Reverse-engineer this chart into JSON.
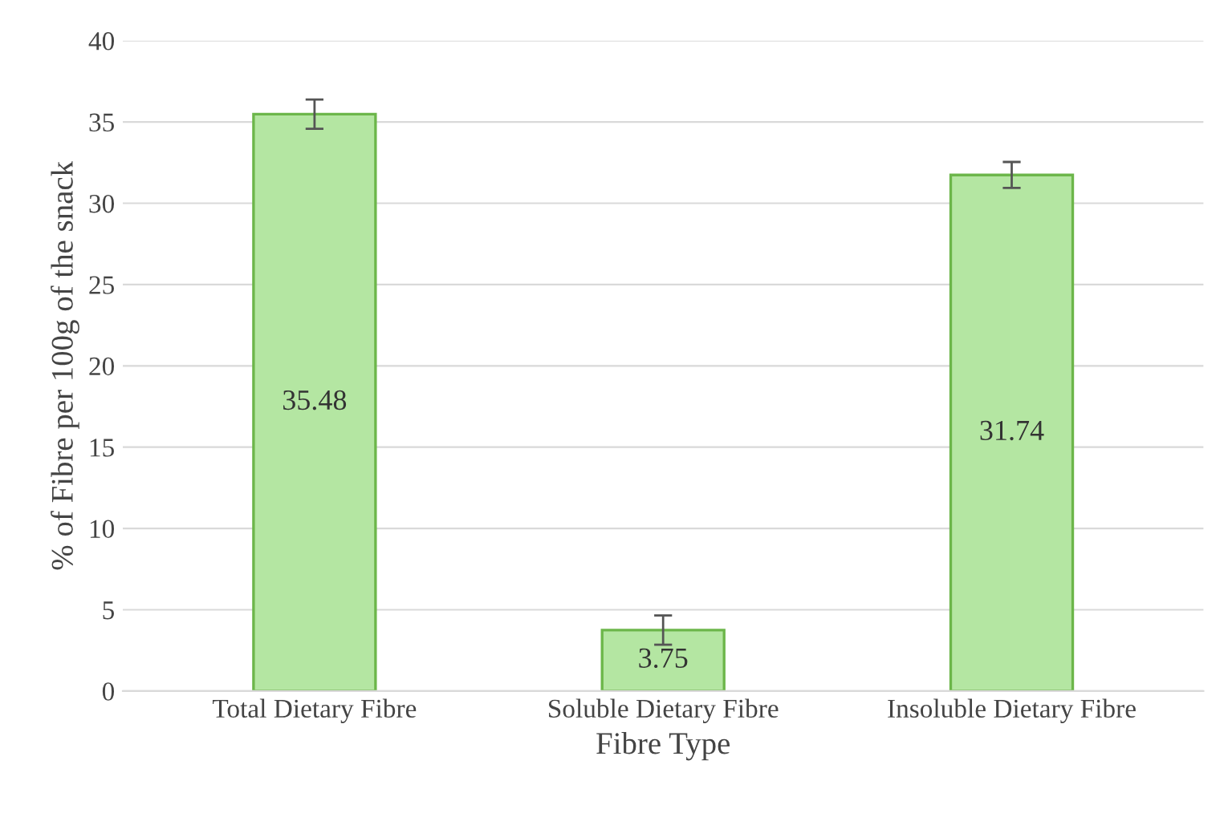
{
  "chart_data": {
    "type": "bar",
    "xlabel": "Fibre Type",
    "ylabel": "% of Fibre per 100g of the snack",
    "categories": [
      "Total Dietary Fibre",
      "Soluble Dietary Fibre",
      "Insoluble Dietary Fibre"
    ],
    "values": [
      35.48,
      3.75,
      31.74
    ],
    "errors": [
      0.9,
      0.9,
      0.8
    ],
    "color": "#b4e6a2",
    "ylim": [
      0,
      40
    ],
    "yticks": [
      0,
      5,
      10,
      15,
      20,
      25,
      30,
      35,
      40
    ],
    "grid": "y",
    "data_labels": true
  }
}
